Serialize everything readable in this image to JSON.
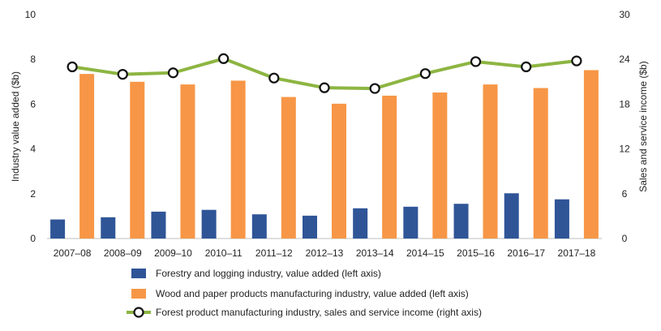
{
  "chart_data": {
    "type": "bar",
    "categories": [
      "2007–08",
      "2008–09",
      "2009–10",
      "2010–11",
      "2011–12",
      "2012–13",
      "2013–14",
      "2014–15",
      "2015–16",
      "2016–17",
      "2017–18"
    ],
    "ylabel": "Industry value added ($b)",
    "y2label": "Sales and service income ($b)",
    "ylim": [
      0,
      10
    ],
    "y2lim": [
      0,
      30
    ],
    "yticks": [
      "0",
      "2",
      "4",
      "6",
      "8",
      "10"
    ],
    "y2ticks": [
      "0",
      "6",
      "12",
      "18",
      "24",
      "30"
    ],
    "grid": false,
    "legend_position": "bottom",
    "series": [
      {
        "name": "Forestry and logging industry, value added (left axis)",
        "type": "bar",
        "axis": "left",
        "color": "#2f5597",
        "values": [
          0.85,
          0.95,
          1.2,
          1.28,
          1.08,
          1.02,
          1.35,
          1.42,
          1.55,
          2.02,
          1.75
        ]
      },
      {
        "name": "Wood and paper products manufacturing industry, value added (left axis)",
        "type": "bar",
        "axis": "left",
        "color": "#f79646",
        "values": [
          7.35,
          7.0,
          6.88,
          7.05,
          6.32,
          6.02,
          6.38,
          6.52,
          6.88,
          6.72,
          7.52
        ]
      },
      {
        "name": "Forest product manufacturing industry, sales and service income (right axis)",
        "type": "line",
        "axis": "right",
        "color": "#8db542",
        "values": [
          23.0,
          22.0,
          22.2,
          24.1,
          21.5,
          20.2,
          20.1,
          22.1,
          23.7,
          23.0,
          23.8
        ]
      }
    ]
  }
}
